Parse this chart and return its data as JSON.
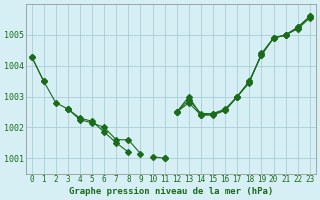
{
  "title": "Graphe pression niveau de la mer (hPa)",
  "background_color": "#d6eff5",
  "grid_color": "#a0c8d0",
  "line_color": "#1a6b1a",
  "x_ticks": [
    0,
    1,
    2,
    3,
    4,
    5,
    6,
    7,
    8,
    9,
    10,
    11,
    12,
    13,
    14,
    15,
    16,
    17,
    18,
    19,
    20,
    21,
    22,
    23
  ],
  "ylim": [
    1000.5,
    1006.0
  ],
  "yticks": [
    1001,
    1002,
    1003,
    1004,
    1005
  ],
  "line1": [
    1004.3,
    1003.5,
    null,
    1002.6,
    1002.25,
    1002.15,
    1002.0,
    1001.6,
    1001.6,
    1001.15,
    null,
    1001.0,
    null,
    null,
    null,
    null,
    null,
    null,
    null,
    null,
    null,
    null,
    null,
    null
  ],
  "line2": [
    null,
    null,
    null,
    1002.6,
    1002.3,
    1002.2,
    1001.85,
    1001.5,
    1001.2,
    null,
    1001.05,
    1001.0,
    null,
    null,
    null,
    null,
    null,
    null,
    null,
    null,
    null,
    null,
    null,
    null
  ],
  "line3": [
    1004.3,
    1003.5,
    1002.8,
    1002.6,
    null,
    null,
    null,
    null,
    null,
    null,
    null,
    null,
    1002.5,
    1003.0,
    1002.4,
    1002.4,
    1002.55,
    1003.0,
    1003.5,
    1004.35,
    1004.9,
    1005.0,
    1005.25,
    1005.6
  ],
  "line4": [
    null,
    null,
    null,
    null,
    null,
    null,
    null,
    null,
    null,
    null,
    null,
    null,
    1002.5,
    1002.8,
    1002.4,
    1002.45,
    1002.55,
    1003.0,
    1003.45,
    1004.4,
    1004.9,
    1005.0,
    1005.2,
    1005.55
  ],
  "line5": [
    null,
    null,
    null,
    null,
    null,
    null,
    null,
    null,
    null,
    null,
    null,
    null,
    1002.5,
    1002.9,
    1002.45,
    1002.45,
    1002.6,
    1003.0,
    1003.5,
    1004.35,
    1004.9,
    1005.0,
    1005.25,
    1005.6
  ]
}
